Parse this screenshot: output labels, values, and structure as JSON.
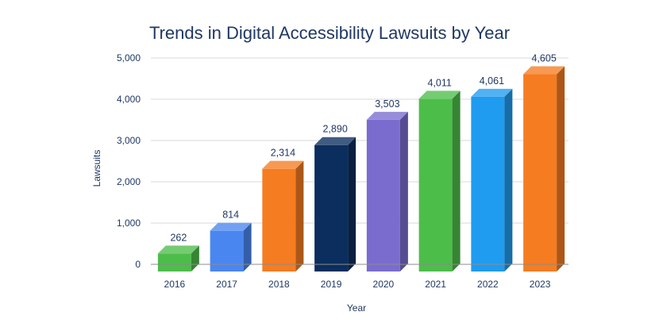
{
  "chart_data": {
    "type": "bar",
    "title": "Trends in Digital Accessibility Lawsuits by Year",
    "xlabel": "Year",
    "ylabel": "Lawsuits",
    "ylim": [
      0,
      5000
    ],
    "yticks": [
      "0",
      "1,000",
      "2,000",
      "3,000",
      "4,000",
      "5,000"
    ],
    "ytick_values": [
      0,
      1000,
      2000,
      3000,
      4000,
      5000
    ],
    "grid": true,
    "categories": [
      "2016",
      "2017",
      "2018",
      "2019",
      "2020",
      "2021",
      "2022",
      "2023"
    ],
    "values": [
      262,
      814,
      2314,
      2890,
      3503,
      4011,
      4061,
      4605
    ],
    "value_labels": [
      "262",
      "814",
      "2,314",
      "2,890",
      "3,503",
      "4,011",
      "4,061",
      "4,605"
    ],
    "colors": [
      "#4dbd4a",
      "#4a86f0",
      "#f57c21",
      "#0b2e5e",
      "#7a6ccf",
      "#4dbd4a",
      "#1f9bf0",
      "#f57c21"
    ]
  }
}
